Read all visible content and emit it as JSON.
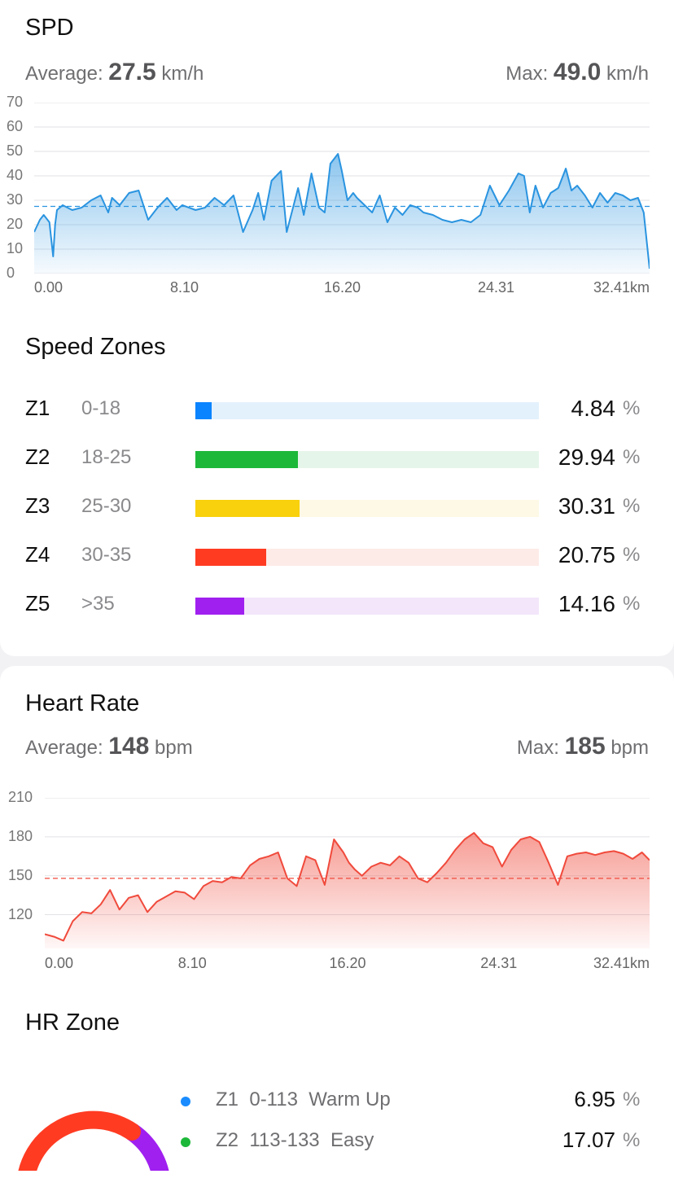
{
  "spd": {
    "title": "SPD",
    "avg_label": "Average:",
    "avg_value": "27.5",
    "avg_unit": "km/h",
    "max_label": "Max:",
    "max_value": "49.0",
    "max_unit": "km/h"
  },
  "speed_zones": {
    "title": "Speed Zones",
    "zones": [
      {
        "id": "Z1",
        "range": "0-18",
        "percent": "4.84",
        "fraction": 0.048,
        "color": "#0a84ff",
        "track": "#e3f1fc"
      },
      {
        "id": "Z2",
        "range": "18-25",
        "percent": "29.94",
        "fraction": 0.299,
        "color": "#1db83a",
        "track": "#e6f5e9"
      },
      {
        "id": "Z3",
        "range": "25-30",
        "percent": "30.31",
        "fraction": 0.303,
        "color": "#f9d10c",
        "track": "#fef9e6"
      },
      {
        "id": "Z4",
        "range": "30-35",
        "percent": "20.75",
        "fraction": 0.207,
        "color": "#ff3b22",
        "track": "#fdebe8"
      },
      {
        "id": "Z5",
        "range": ">35",
        "percent": "14.16",
        "fraction": 0.142,
        "color": "#a020f0",
        "track": "#f3e6fb"
      }
    ],
    "percent_symbol": "%"
  },
  "heart_rate": {
    "title": "Heart Rate",
    "avg_label": "Average:",
    "avg_value": "148",
    "avg_unit": "bpm",
    "max_label": "Max:",
    "max_value": "185",
    "max_unit": "bpm"
  },
  "hr_zone": {
    "title": "HR Zone",
    "zones": [
      {
        "label": "Z1  0-113  Warm Up",
        "percent": "6.95",
        "color": "#1a8cff"
      },
      {
        "label": "Z2  113-133  Easy",
        "percent": "17.07",
        "color": "#1db83a"
      }
    ],
    "percent_symbol": "%",
    "ring_colors": [
      "#ff3b22",
      "#a020f0"
    ]
  },
  "chart_data": [
    {
      "type": "area",
      "title": "SPD",
      "x_unit": "km",
      "x_ticks": [
        "0.00",
        "8.10",
        "16.20",
        "24.31",
        "32.41km"
      ],
      "y_ticks": [
        "70",
        "60",
        "50",
        "40",
        "30",
        "20",
        "10",
        "0"
      ],
      "xlim": [
        0,
        32.41
      ],
      "ylim": [
        0,
        70
      ],
      "average_line": 27.5,
      "grid": true,
      "color": "#2a94e0",
      "series": [
        {
          "x": [
            0,
            0.3,
            0.5,
            0.8,
            1.0,
            1.1,
            1.2,
            1.5,
            2.0,
            2.5,
            3.0,
            3.5,
            3.9,
            4.1,
            4.5,
            5.0,
            5.5,
            6.0,
            6.5,
            7.0,
            7.5,
            7.8,
            8.5,
            9.0,
            9.5,
            10.0,
            10.5,
            11.0,
            11.5,
            11.8,
            12.1,
            12.5,
            13.0,
            13.3,
            13.6,
            13.9,
            14.2,
            14.6,
            15.0,
            15.3,
            15.6,
            16.0,
            16.2,
            16.5,
            16.8,
            17.0,
            17.4,
            17.8,
            18.2,
            18.6,
            19.0,
            19.4,
            19.8,
            20.2,
            20.5,
            21.0,
            21.5,
            22.0,
            22.5,
            23.0,
            23.5,
            24.0,
            24.5,
            25.0,
            25.5,
            25.8,
            26.1,
            26.4,
            26.8,
            27.2,
            27.6,
            28.0,
            28.3,
            28.6,
            29.0,
            29.4,
            29.8,
            30.2,
            30.6,
            31.0,
            31.4,
            31.8,
            32.1,
            32.41
          ],
          "y": [
            17,
            22,
            24,
            21,
            7,
            20,
            26,
            28,
            26,
            27,
            30,
            32,
            25,
            31,
            28,
            33,
            34,
            22,
            27,
            31,
            26,
            28,
            26,
            27,
            31,
            28,
            32,
            17,
            26,
            33,
            22,
            38,
            42,
            17,
            26,
            35,
            24,
            41,
            27,
            25,
            45,
            49,
            42,
            30,
            33,
            31,
            28,
            25,
            32,
            21,
            27,
            24,
            28,
            27,
            25,
            24,
            22,
            21,
            22,
            21,
            24,
            36,
            28,
            34,
            41,
            40,
            25,
            36,
            27,
            33,
            35,
            43,
            34,
            36,
            32,
            27,
            33,
            29,
            33,
            32,
            30,
            31,
            25,
            2
          ]
        }
      ]
    },
    {
      "type": "area",
      "title": "Heart Rate",
      "x_unit": "km",
      "x_ticks": [
        "0.00",
        "8.10",
        "16.20",
        "24.31",
        "32.41km"
      ],
      "y_ticks": [
        "210",
        "180",
        "150",
        "120"
      ],
      "xlim": [
        0,
        32.41
      ],
      "ylim": [
        94,
        210
      ],
      "average_line": 148,
      "grid": true,
      "color": "#f04a3c",
      "series": [
        {
          "x": [
            0,
            0.5,
            1.0,
            1.5,
            2.0,
            2.5,
            3.0,
            3.5,
            4.0,
            4.5,
            5.0,
            5.5,
            6.0,
            6.5,
            7.0,
            7.5,
            8.0,
            8.5,
            9.0,
            9.5,
            10.0,
            10.5,
            11.0,
            11.5,
            12.0,
            12.5,
            13.0,
            13.5,
            14.0,
            14.5,
            15.0,
            15.5,
            16.0,
            16.3,
            16.6,
            17.0,
            17.5,
            18.0,
            18.5,
            19.0,
            19.5,
            20.0,
            20.5,
            21.0,
            21.5,
            22.0,
            22.5,
            23.0,
            23.5,
            24.0,
            24.5,
            25.0,
            25.5,
            26.0,
            26.5,
            27.0,
            27.5,
            28.0,
            28.5,
            29.0,
            29.5,
            30.0,
            30.5,
            31.0,
            31.5,
            32.0,
            32.41
          ],
          "y": [
            105,
            103,
            100,
            115,
            122,
            121,
            128,
            139,
            124,
            133,
            135,
            122,
            130,
            134,
            138,
            137,
            132,
            142,
            146,
            145,
            149,
            148,
            158,
            163,
            165,
            168,
            148,
            142,
            165,
            162,
            143,
            178,
            168,
            160,
            155,
            150,
            157,
            160,
            158,
            165,
            160,
            148,
            145,
            152,
            160,
            170,
            178,
            183,
            175,
            172,
            157,
            170,
            178,
            180,
            176,
            160,
            143,
            165,
            167,
            168,
            166,
            168,
            169,
            167,
            163,
            168,
            162
          ]
        }
      ]
    }
  ]
}
